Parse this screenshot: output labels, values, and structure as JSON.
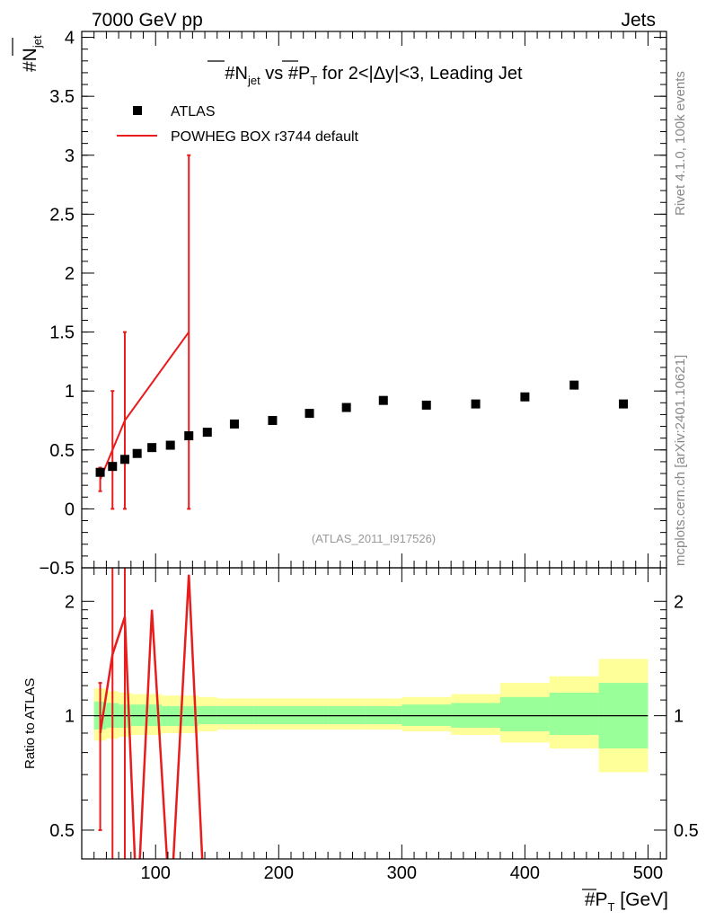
{
  "header": {
    "left": "7000 GeV pp",
    "right": "Jets"
  },
  "side_labels": {
    "rivet": "Rivet 4.1.0, 100k events",
    "mcplots": "mcplots.cern.ch [arXiv:2401.10621]"
  },
  "chart_data": [
    {
      "type": "scatter",
      "title": "#Njet vs #PT for 2<|Δy|<3, Leading Jet",
      "title_parts": {
        "p1": "#",
        "n": "N",
        "nsub": "jet",
        "p2": " vs #",
        "pt": "P",
        "ptsub": "T",
        "p3": " for 2<|Δy|<3, Leading Jet"
      },
      "ylabel": "#Njet",
      "ylabel_parts": {
        "main": "#N",
        "sub": "jet"
      },
      "xlim": [
        40,
        515
      ],
      "ylim": [
        -0.5,
        4.05
      ],
      "yticks": [
        -0.5,
        0,
        0.5,
        1,
        1.5,
        2,
        2.5,
        3,
        3.5,
        4
      ],
      "ytick_labels": [
        "−0.5",
        "0",
        "0.5",
        "1",
        "1.5",
        "2",
        "2.5",
        "3",
        "3.5",
        "4"
      ],
      "watermark": "(ATLAS_2011_I917526)",
      "legend": {
        "atlas": "ATLAS",
        "powheg": "POWHEG BOX r3744 default",
        "position": "top-left"
      },
      "series": [
        {
          "name": "ATLAS",
          "x": [
            55,
            65,
            75,
            85,
            97,
            112,
            127,
            142,
            164,
            195,
            225,
            255,
            285,
            320,
            360,
            400,
            440,
            480
          ],
          "y": [
            0.31,
            0.36,
            0.42,
            0.47,
            0.52,
            0.54,
            0.62,
            0.65,
            0.72,
            0.75,
            0.81,
            0.86,
            0.92,
            0.88,
            0.89,
            0.95,
            1.05,
            0.89
          ],
          "color": "#000000"
        },
        {
          "name": "POWHEG BOX r3744 default",
          "x": [
            55,
            65,
            75,
            127
          ],
          "y": [
            0.25,
            0.5,
            0.75,
            1.5
          ],
          "yerr_low": [
            0.15,
            0.0,
            0.0,
            0.0
          ],
          "yerr_high": [
            0.35,
            1.0,
            1.5,
            3.0
          ],
          "color": "#e81c1c"
        }
      ]
    },
    {
      "type": "line",
      "ylabel": "Ratio to ATLAS",
      "xlabel": "#PT [GeV]",
      "xlabel_parts": {
        "pre": "#",
        "pt": "P",
        "ptsub": "T",
        "post": " [GeV]"
      },
      "xlim": [
        40,
        515
      ],
      "ylim": [
        0.42,
        2.45
      ],
      "log_y": true,
      "xticks": [
        100,
        200,
        300,
        400,
        500
      ],
      "xtick_labels": [
        "100",
        "200",
        "300",
        "400",
        "500"
      ],
      "yticks": [
        0.5,
        1,
        2
      ],
      "ytick_labels": [
        "0.5",
        "1",
        "2"
      ],
      "reference": 1,
      "bands": {
        "edges": [
          50,
          60,
          70,
          80,
          90,
          105,
          120,
          135,
          150,
          180,
          210,
          240,
          270,
          300,
          340,
          380,
          420,
          460,
          500
        ],
        "yellow_low": [
          0.86,
          0.87,
          0.88,
          0.89,
          0.89,
          0.9,
          0.9,
          0.91,
          0.92,
          0.92,
          0.92,
          0.92,
          0.92,
          0.91,
          0.89,
          0.85,
          0.82,
          0.71
        ],
        "yellow_high": [
          1.18,
          1.16,
          1.15,
          1.14,
          1.14,
          1.13,
          1.13,
          1.12,
          1.11,
          1.11,
          1.11,
          1.11,
          1.11,
          1.12,
          1.14,
          1.22,
          1.27,
          1.41
        ],
        "green_low": [
          0.92,
          0.93,
          0.93,
          0.94,
          0.94,
          0.94,
          0.94,
          0.95,
          0.95,
          0.95,
          0.95,
          0.95,
          0.95,
          0.94,
          0.93,
          0.91,
          0.89,
          0.82
        ],
        "green_high": [
          1.09,
          1.08,
          1.07,
          1.07,
          1.07,
          1.06,
          1.06,
          1.06,
          1.06,
          1.06,
          1.06,
          1.06,
          1.06,
          1.07,
          1.08,
          1.12,
          1.15,
          1.22
        ],
        "yellow_color": "#ffff99",
        "green_color": "#99ff99"
      },
      "series": [
        {
          "name": "POWHEG BOX r3744 default",
          "x": [
            55,
            65,
            75,
            85,
            97,
            112,
            127,
            140
          ],
          "y": [
            0.9,
            1.45,
            1.82,
            0.3,
            1.9,
            0.3,
            2.35,
            0.3
          ],
          "err_x": [
            55,
            65,
            75
          ],
          "err_low": [
            0.5,
            0.3,
            0.3
          ],
          "err_high": [
            1.22,
            2.6,
            2.6
          ],
          "color": "#e81c1c"
        }
      ]
    }
  ]
}
